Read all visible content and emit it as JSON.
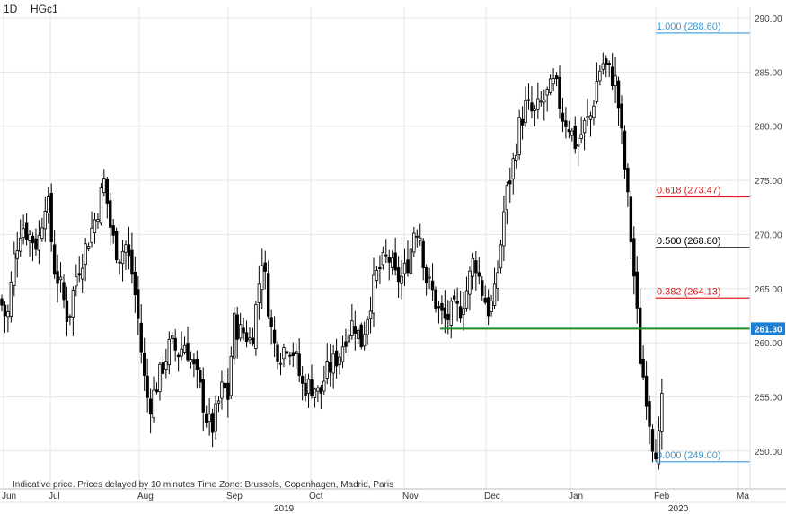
{
  "header": {
    "interval": "1D",
    "symbol": "HGc1"
  },
  "footnote": "Indicative price. Prices delayed by 10 minutes    Time Zone: Brussels, Copenhagen, Madrid, Paris",
  "colors": {
    "grid": "#e3e3e3",
    "candle": "#000000",
    "fib_blue": "#3a9bd9",
    "fib_red": "#e02020",
    "fib_black": "#000000",
    "support": "#1e8c1e",
    "tag_bg": "#1a7fd6"
  },
  "chart_data": {
    "type": "candlestick",
    "title": "HGc1",
    "interval": "1D",
    "y_axis": {
      "ticks": [
        250,
        255,
        260,
        265,
        270,
        275,
        280,
        285,
        290
      ],
      "ylim": [
        246.5,
        291
      ],
      "position": "right"
    },
    "x_axis": {
      "months": [
        "Jun",
        "Jul",
        "Aug",
        "Sep",
        "Oct",
        "Nov",
        "Dec",
        "Jan",
        "Feb",
        "Ma"
      ],
      "years": [
        "2019",
        "2020"
      ]
    },
    "fibonacci_levels": [
      {
        "label": "1.000 (288.60)",
        "ratio": 1.0,
        "value": 288.6,
        "color": "blue"
      },
      {
        "label": "0.618 (273.47)",
        "ratio": 0.618,
        "value": 273.47,
        "color": "red"
      },
      {
        "label": "0.500 (268.80)",
        "ratio": 0.5,
        "value": 268.8,
        "color": "black"
      },
      {
        "label": "0.382 (264.13)",
        "ratio": 0.382,
        "value": 264.13,
        "color": "red"
      },
      {
        "label": "0.000 (249.00)",
        "ratio": 0.0,
        "value": 249.0,
        "color": "blue"
      }
    ],
    "support_line": {
      "value": 261.3,
      "label": "261.30",
      "start": "Nov"
    },
    "close_path": [
      [
        0,
        264
      ],
      [
        8,
        262
      ],
      [
        16,
        268
      ],
      [
        24,
        271
      ],
      [
        32,
        270
      ],
      [
        42,
        269
      ],
      [
        52,
        274
      ],
      [
        60,
        267
      ],
      [
        68,
        265
      ],
      [
        76,
        262
      ],
      [
        84,
        266
      ],
      [
        92,
        268
      ],
      [
        100,
        270
      ],
      [
        108,
        272
      ],
      [
        116,
        275
      ],
      [
        124,
        270
      ],
      [
        132,
        268
      ],
      [
        140,
        269
      ],
      [
        148,
        266
      ],
      [
        154,
        262
      ],
      [
        160,
        257
      ],
      [
        166,
        254
      ],
      [
        174,
        256
      ],
      [
        182,
        258
      ],
      [
        190,
        260
      ],
      [
        198,
        259
      ],
      [
        206,
        260
      ],
      [
        214,
        258
      ],
      [
        222,
        256
      ],
      [
        230,
        253
      ],
      [
        236,
        252
      ],
      [
        242,
        254
      ],
      [
        248,
        256
      ],
      [
        254,
        255
      ],
      [
        260,
        262
      ],
      [
        266,
        261
      ],
      [
        272,
        261
      ],
      [
        280,
        260
      ],
      [
        286,
        264
      ],
      [
        292,
        268
      ],
      [
        298,
        264
      ],
      [
        304,
        260
      ],
      [
        312,
        259
      ],
      [
        320,
        260
      ],
      [
        328,
        259
      ],
      [
        336,
        256
      ],
      [
        344,
        256
      ],
      [
        350,
        256
      ],
      [
        356,
        255
      ],
      [
        362,
        257
      ],
      [
        370,
        258
      ],
      [
        378,
        259
      ],
      [
        386,
        261
      ],
      [
        394,
        262
      ],
      [
        402,
        260
      ],
      [
        410,
        263
      ],
      [
        418,
        266
      ],
      [
        424,
        267
      ],
      [
        432,
        268
      ],
      [
        440,
        266
      ],
      [
        448,
        266
      ],
      [
        456,
        268
      ],
      [
        462,
        271
      ],
      [
        468,
        270
      ],
      [
        474,
        266
      ],
      [
        480,
        265
      ],
      [
        488,
        263
      ],
      [
        496,
        262
      ],
      [
        504,
        263
      ],
      [
        512,
        263
      ],
      [
        520,
        265
      ],
      [
        528,
        268
      ],
      [
        536,
        265
      ],
      [
        544,
        263
      ],
      [
        550,
        264
      ],
      [
        556,
        268
      ],
      [
        562,
        273
      ],
      [
        570,
        276
      ],
      [
        578,
        280
      ],
      [
        586,
        282
      ],
      [
        594,
        281
      ],
      [
        602,
        282
      ],
      [
        610,
        283
      ],
      [
        618,
        284
      ],
      [
        626,
        281
      ],
      [
        634,
        280
      ],
      [
        642,
        278
      ],
      [
        650,
        280
      ],
      [
        658,
        281
      ],
      [
        664,
        284
      ],
      [
        670,
        286
      ],
      [
        678,
        285
      ],
      [
        686,
        284
      ],
      [
        692,
        279
      ],
      [
        698,
        274
      ],
      [
        704,
        268
      ],
      [
        708,
        264
      ],
      [
        712,
        259
      ],
      [
        716,
        257
      ],
      [
        720,
        255
      ],
      [
        726,
        251
      ],
      [
        732,
        250
      ],
      [
        736,
        253
      ],
      [
        740,
        259
      ]
    ]
  }
}
